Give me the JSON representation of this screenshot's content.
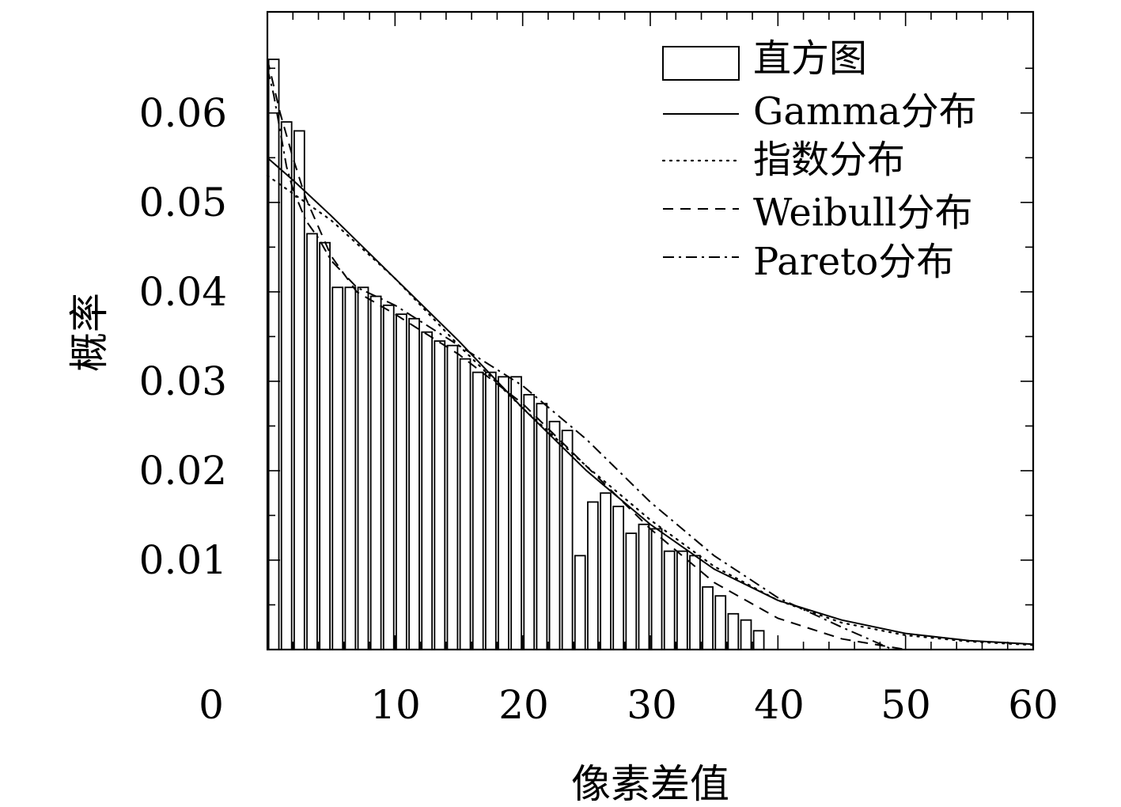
{
  "chart_data": {
    "type": "bar",
    "xlabel": "像素差值",
    "ylabel": "概率",
    "xlim": [
      0,
      60
    ],
    "ylim": [
      0,
      0.07
    ],
    "x_ticks": [
      0,
      10,
      20,
      30,
      40,
      50,
      60
    ],
    "x_tick_labels": [
      "0",
      "10",
      "20",
      "30",
      "40",
      "50",
      "60"
    ],
    "y_ticks": [
      0.01,
      0.02,
      0.03,
      0.04,
      0.05,
      0.06
    ],
    "y_tick_labels": [
      "0.01",
      "0.02",
      "0.03",
      "0.04",
      "0.05",
      "0.06"
    ],
    "grid": false,
    "legend_position": "top-right",
    "histogram": {
      "name": "直方图",
      "bin_centers": [
        0.5,
        1.5,
        2.5,
        3.5,
        4.5,
        5.5,
        6.5,
        7.5,
        8.5,
        9.5,
        10.5,
        11.5,
        12.5,
        13.5,
        14.5,
        15.5,
        16.5,
        17.5,
        18.5,
        19.5,
        20.5,
        21.5,
        22.5,
        23.5,
        24.5,
        25.5,
        26.5,
        27.5,
        28.5,
        29.5,
        30.5,
        31.5,
        32.5,
        33.5,
        34.5,
        35.5,
        36.5,
        37.5,
        38.5
      ],
      "values": [
        0.066,
        0.059,
        0.058,
        0.0465,
        0.0455,
        0.0405,
        0.0405,
        0.0405,
        0.0395,
        0.0385,
        0.0375,
        0.037,
        0.0355,
        0.0345,
        0.034,
        0.0325,
        0.031,
        0.031,
        0.0305,
        0.0305,
        0.0285,
        0.0275,
        0.0255,
        0.0245,
        0.0105,
        0.0165,
        0.0175,
        0.016,
        0.013,
        0.014,
        0.0135,
        0.011,
        0.011,
        0.0105,
        0.007,
        0.006,
        0.004,
        0.0033,
        0.0021
      ],
      "bar_width": 0.8
    },
    "series": [
      {
        "name": "Gamma分布",
        "style": "solid",
        "x": [
          0,
          2,
          5,
          10,
          15,
          20,
          25,
          30,
          35,
          40,
          45,
          50,
          55,
          60
        ],
        "y": [
          0.055,
          0.0525,
          0.0485,
          0.0415,
          0.0345,
          0.027,
          0.02,
          0.014,
          0.009,
          0.0055,
          0.0033,
          0.0018,
          0.001,
          0.0006
        ]
      },
      {
        "name": "指数分布",
        "style": "dotted",
        "x": [
          0,
          2,
          5,
          10,
          15,
          20,
          25,
          30,
          35,
          40,
          45,
          50,
          55,
          60
        ],
        "y": [
          0.053,
          0.051,
          0.048,
          0.0415,
          0.034,
          0.027,
          0.0205,
          0.0145,
          0.0093,
          0.0055,
          0.003,
          0.0016,
          0.0009,
          0.0005
        ]
      },
      {
        "name": "Weibull分布",
        "style": "dashed",
        "x": [
          0,
          1,
          2,
          3,
          5,
          7,
          10,
          15,
          20,
          25,
          30,
          35,
          40,
          45,
          50
        ],
        "y": [
          0.066,
          0.06,
          0.055,
          0.0505,
          0.044,
          0.04,
          0.0375,
          0.033,
          0.0275,
          0.0205,
          0.0135,
          0.0075,
          0.0035,
          0.0012,
          0.0
        ]
      },
      {
        "name": "Pareto分布",
        "style": "dashdot",
        "x": [
          0,
          0.5,
          1,
          1.5,
          2,
          3,
          4,
          5,
          7,
          10,
          15,
          20,
          25,
          30,
          35,
          40,
          45,
          49
        ],
        "y": [
          0.065,
          0.062,
          0.058,
          0.054,
          0.0515,
          0.048,
          0.046,
          0.0435,
          0.0405,
          0.0385,
          0.034,
          0.0295,
          0.0235,
          0.0165,
          0.0105,
          0.0058,
          0.0025,
          0.0
        ]
      }
    ]
  }
}
